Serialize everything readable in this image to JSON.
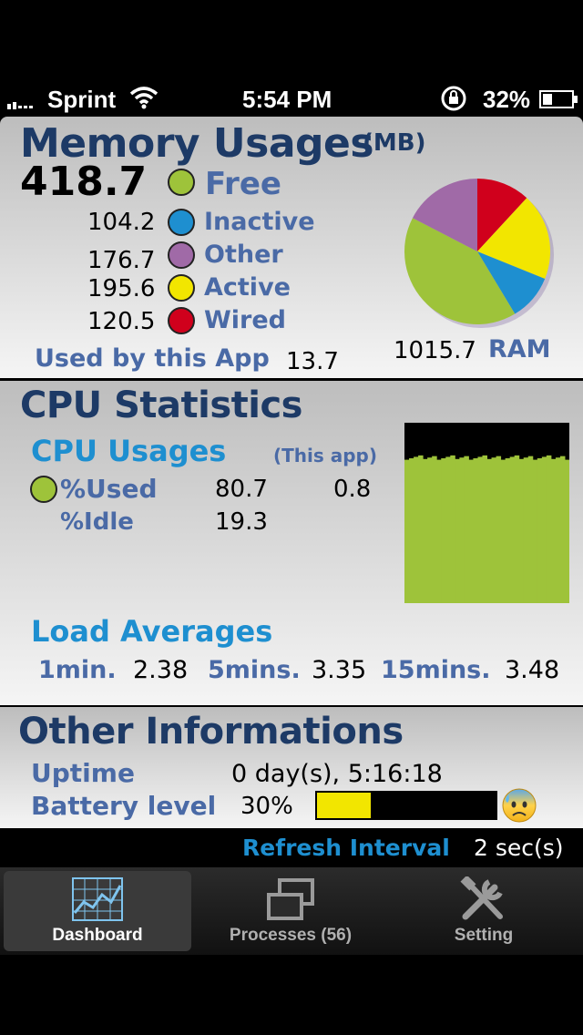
{
  "status_bar": {
    "carrier": "Sprint",
    "time": "5:54 PM",
    "battery": "32%"
  },
  "memory": {
    "title": "Memory Usages",
    "unit": "(MB)",
    "items": [
      {
        "value": "418.7",
        "label": "Free",
        "color": "#9ec33a"
      },
      {
        "value": "104.2",
        "label": "Inactive",
        "color": "#1e8fd0"
      },
      {
        "value": "176.7",
        "label": "Other",
        "color": "#a06aa7"
      },
      {
        "value": "195.6",
        "label": "Active",
        "color": "#f2e600"
      },
      {
        "value": "120.5",
        "label": "Wired",
        "color": "#d0001c"
      }
    ],
    "used_by_app_label": "Used by this App",
    "used_by_app_value": "13.7",
    "ram_value": "1015.7",
    "ram_label": "RAM"
  },
  "chart_data": {
    "type": "pie",
    "categories": [
      "Free",
      "Inactive",
      "Other",
      "Active",
      "Wired"
    ],
    "values": [
      418.7,
      104.2,
      176.7,
      195.6,
      120.5
    ],
    "order_clockwise_from_top": [
      "Wired",
      "Active",
      "Inactive",
      "Free",
      "Other"
    ]
  },
  "cpu": {
    "title": "CPU Statistics",
    "usages_title": "CPU Usages",
    "this_app_label": "(This app)",
    "used_label": "%Used",
    "used_value": "80.7",
    "used_app_value": "0.8",
    "idle_label": "%Idle",
    "idle_value": "19.3",
    "graph_used_pct": 80.7,
    "load_title": "Load Averages",
    "load": [
      {
        "label": "1min.",
        "value": "2.38"
      },
      {
        "label": "5mins.",
        "value": "3.35"
      },
      {
        "label": "15mins.",
        "value": "3.48"
      }
    ]
  },
  "other": {
    "title": "Other Informations",
    "uptime_label": "Uptime",
    "uptime_value": "0 day(s), 5:16:18",
    "battery_label": "Battery level",
    "battery_value": "30%",
    "battery_fraction": 0.3,
    "battery_icon": "worried-face-icon"
  },
  "refresh": {
    "label": "Refresh Interval",
    "value": "2 sec(s)"
  },
  "tabs": [
    {
      "label": "Dashboard",
      "icon": "chart-icon",
      "selected": true
    },
    {
      "label": "Processes (56)",
      "icon": "windows-icon",
      "selected": false
    },
    {
      "label": "Setting",
      "icon": "tools-icon",
      "selected": false
    }
  ]
}
